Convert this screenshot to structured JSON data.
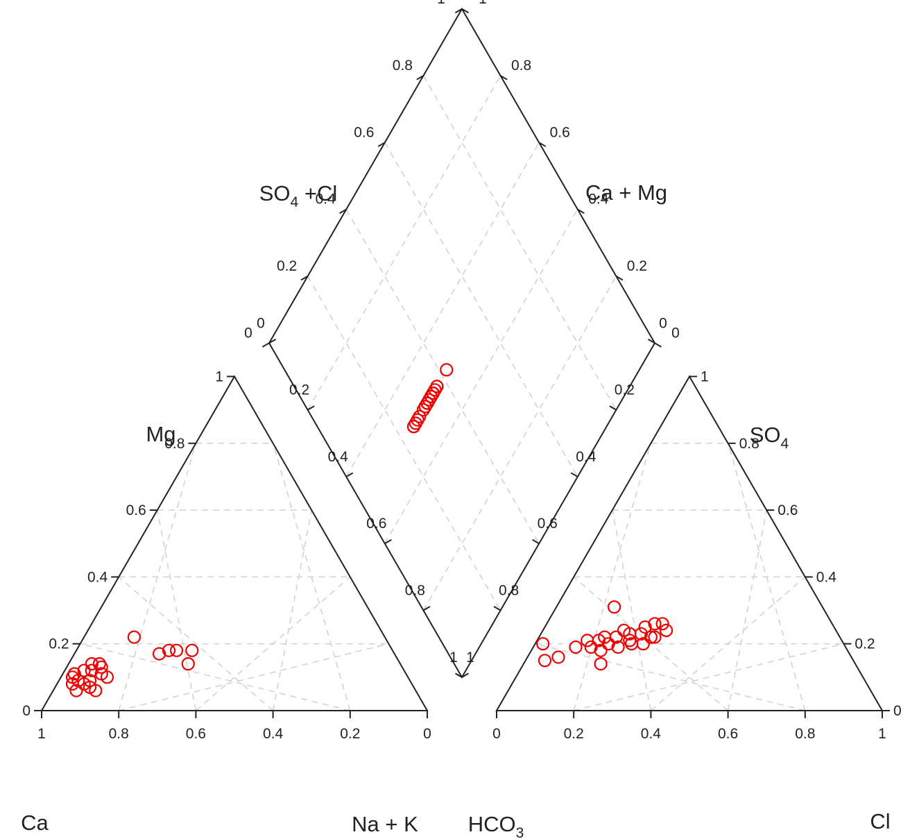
{
  "colors": {
    "frame": "#222222",
    "grid": "#d0d0d0",
    "points": "#ee0000",
    "background": "#ffffff"
  },
  "chart_data": [
    {
      "type": "scatter",
      "subtype": "ternary",
      "panel": "cation",
      "tick_values": [
        0,
        0.2,
        0.4,
        0.6,
        0.8,
        1
      ],
      "tick_labels_mg": [
        "0",
        "0.2",
        "0.4",
        "0.6",
        "0.8",
        "1"
      ],
      "tick_labels_nak": [
        "1",
        "0.8",
        "0.6",
        "0.4",
        "0.2",
        "0"
      ],
      "label_mg": "Mg",
      "label_ca": "Ca",
      "label_nak": "Na + K",
      "grid": true,
      "points": [
        {
          "na_k": 0.13,
          "mg": 0.22
        },
        {
          "na_k": 0.22,
          "mg": 0.17
        },
        {
          "na_k": 0.24,
          "mg": 0.18
        },
        {
          "na_k": 0.26,
          "mg": 0.18
        },
        {
          "na_k": 0.3,
          "mg": 0.18
        },
        {
          "na_k": 0.31,
          "mg": 0.14
        },
        {
          "na_k": 0.06,
          "mg": 0.14
        },
        {
          "na_k": 0.08,
          "mg": 0.14
        },
        {
          "na_k": 0.05,
          "mg": 0.12
        },
        {
          "na_k": 0.07,
          "mg": 0.12
        },
        {
          "na_k": 0.1,
          "mg": 0.11
        },
        {
          "na_k": 0.12,
          "mg": 0.1
        },
        {
          "na_k": 0.03,
          "mg": 0.1
        },
        {
          "na_k": 0.05,
          "mg": 0.09
        },
        {
          "na_k": 0.08,
          "mg": 0.09
        },
        {
          "na_k": 0.04,
          "mg": 0.08
        },
        {
          "na_k": 0.07,
          "mg": 0.08
        },
        {
          "na_k": 0.09,
          "mg": 0.07
        },
        {
          "na_k": 0.06,
          "mg": 0.06
        },
        {
          "na_k": 0.11,
          "mg": 0.06
        },
        {
          "na_k": 0.09,
          "mg": 0.13
        },
        {
          "na_k": 0.03,
          "mg": 0.11
        }
      ]
    },
    {
      "type": "scatter",
      "subtype": "ternary",
      "panel": "anion",
      "tick_values": [
        0,
        0.2,
        0.4,
        0.6,
        0.8,
        1
      ],
      "tick_labels_cl": [
        "0",
        "0.2",
        "0.4",
        "0.6",
        "0.8",
        "1"
      ],
      "tick_labels_so4": [
        "0",
        "0.2",
        "0.4",
        "0.6",
        "0.8",
        "1"
      ],
      "label_so4": "SO",
      "label_so4_sub": "4",
      "label_hco3": "HCO",
      "label_hco3_sub": "3",
      "label_cl": "Cl",
      "grid": true,
      "points": [
        {
          "cl": 0.15,
          "so4": 0.31
        },
        {
          "cl": 0.28,
          "so4": 0.26
        },
        {
          "cl": 0.3,
          "so4": 0.26
        },
        {
          "cl": 0.26,
          "so4": 0.25
        },
        {
          "cl": 0.32,
          "so4": 0.24
        },
        {
          "cl": 0.21,
          "so4": 0.24
        },
        {
          "cl": 0.23,
          "so4": 0.23
        },
        {
          "cl": 0.26,
          "so4": 0.23
        },
        {
          "cl": 0.29,
          "so4": 0.22
        },
        {
          "cl": 0.3,
          "so4": 0.22
        },
        {
          "cl": 0.2,
          "so4": 0.22
        },
        {
          "cl": 0.24,
          "so4": 0.21
        },
        {
          "cl": 0.16,
          "so4": 0.21
        },
        {
          "cl": 0.19,
          "so4": 0.2
        },
        {
          "cl": 0.25,
          "so4": 0.2
        },
        {
          "cl": 0.28,
          "so4": 0.2
        },
        {
          "cl": 0.15,
          "so4": 0.19
        },
        {
          "cl": 0.18,
          "so4": 0.18
        },
        {
          "cl": 0.02,
          "so4": 0.2
        },
        {
          "cl": 0.08,
          "so4": 0.16
        },
        {
          "cl": 0.05,
          "so4": 0.15
        },
        {
          "cl": 0.2,
          "so4": 0.14
        },
        {
          "cl": 0.11,
          "so4": 0.19
        },
        {
          "cl": 0.13,
          "so4": 0.21
        },
        {
          "cl": 0.22,
          "so4": 0.19
        },
        {
          "cl": 0.17,
          "so4": 0.22
        }
      ]
    },
    {
      "type": "scatter",
      "subtype": "diamond",
      "panel": "diamond",
      "tick_values": [
        0,
        0.2,
        0.4,
        0.6,
        0.8,
        1
      ],
      "tick_labels": [
        "0",
        "0.2",
        "0.4",
        "0.6",
        "0.8",
        "1"
      ],
      "label_so4cl": "SO",
      "label_so4cl_sub": "4",
      "label_so4cl_tail": " +Cl",
      "label_camg": "Ca + Mg",
      "grid": true,
      "points": [
        {
          "na_k": 0.07,
          "so4_cl": 0.32
        },
        {
          "na_k": 0.15,
          "so4_cl": 0.31
        },
        {
          "na_k": 0.05,
          "so4_cl": 0.29
        },
        {
          "na_k": 0.04,
          "so4_cl": 0.29
        },
        {
          "na_k": 0.11,
          "so4_cl": 0.29
        },
        {
          "na_k": 0.05,
          "so4_cl": 0.27
        },
        {
          "na_k": 0.07,
          "so4_cl": 0.27
        },
        {
          "na_k": 0.1,
          "so4_cl": 0.26
        },
        {
          "na_k": 0.08,
          "so4_cl": 0.25
        },
        {
          "na_k": 0.05,
          "so4_cl": 0.24
        },
        {
          "na_k": 0.06,
          "so4_cl": 0.24
        },
        {
          "na_k": 0.11,
          "so4_cl": 0.24
        },
        {
          "na_k": 0.07,
          "so4_cl": 0.23
        },
        {
          "na_k": 0.09,
          "so4_cl": 0.24
        },
        {
          "na_k": 0.04,
          "so4_cl": 0.23
        },
        {
          "na_k": 0.08,
          "so4_cl": 0.22
        },
        {
          "na_k": 0.14,
          "so4_cl": 0.22
        },
        {
          "na_k": 0.06,
          "so4_cl": 0.21
        },
        {
          "na_k": 0.02,
          "so4_cl": 0.2
        },
        {
          "na_k": 0.03,
          "so4_cl": 0.21
        },
        {
          "na_k": 0.05,
          "so4_cl": 0.18
        },
        {
          "na_k": 0.02,
          "so4_cl": 0.18
        },
        {
          "na_k": 0.12,
          "so4_cl": 0.35
        },
        {
          "na_k": 0.06,
          "so4_cl": 0.21
        }
      ]
    }
  ],
  "ticks": {
    "cation_base": [
      "1",
      "0.8",
      "0.6",
      "0.4",
      "0.2",
      "0"
    ],
    "cation_left": [
      "0",
      "0.2",
      "0.4",
      "0.6",
      "0.8",
      "1"
    ],
    "anion_base": [
      "0",
      "0.2",
      "0.4",
      "0.6",
      "0.8",
      "1"
    ],
    "anion_right": [
      "0",
      "0.2",
      "0.4",
      "0.6",
      "0.8",
      "1"
    ],
    "lower_left_edge": [
      "0",
      "0.2",
      "0.4",
      "0.6",
      "0.8",
      "1"
    ],
    "lower_right_edge": [
      "0",
      "0.2",
      "0.4",
      "0.6",
      "0.8",
      "1"
    ],
    "upper_left_edge": [
      "0",
      "0.2",
      "0.4",
      "0.6",
      "0.8",
      "1"
    ],
    "upper_right_edge": [
      "0",
      "0.2",
      "0.4",
      "0.6",
      "0.8",
      "1"
    ]
  }
}
